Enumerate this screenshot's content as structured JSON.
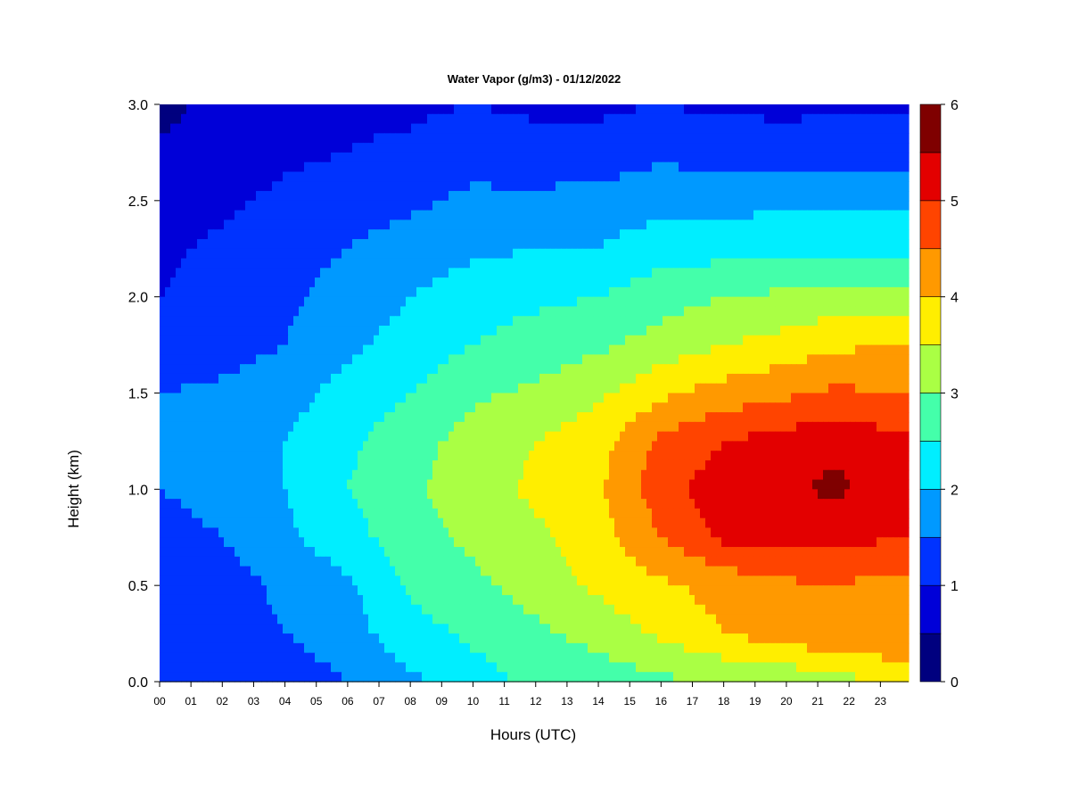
{
  "chart_data": {
    "type": "heatmap",
    "title": "Water Vapor (g/m3) - 01/12/2022",
    "xlabel": "Hours (UTC)",
    "ylabel": "Height (km)",
    "xlim": [
      0,
      23.9
    ],
    "ylim": [
      0.0,
      3.0
    ],
    "x_ticks": [
      "00",
      "01",
      "02",
      "03",
      "04",
      "05",
      "06",
      "07",
      "08",
      "09",
      "10",
      "11",
      "12",
      "13",
      "14",
      "15",
      "16",
      "17",
      "18",
      "19",
      "20",
      "21",
      "22",
      "23"
    ],
    "y_ticks": [
      "0.0",
      "0.5",
      "1.0",
      "1.5",
      "2.0",
      "2.5",
      "3.0"
    ],
    "colorbar": {
      "range": [
        0,
        6
      ],
      "ticks": [
        "0",
        "1",
        "2",
        "3",
        "4",
        "5",
        "6"
      ],
      "levels": [
        0,
        0.5,
        1,
        1.5,
        2,
        2.5,
        3,
        3.5,
        4,
        4.5,
        5,
        5.5,
        6
      ],
      "colors": [
        "#00007f",
        "#0000d8",
        "#0033ff",
        "#0099ff",
        "#00eeff",
        "#44ffaa",
        "#aaff44",
        "#ffee00",
        "#ff9900",
        "#ff4400",
        "#e30000",
        "#7f0000"
      ]
    },
    "hours": [
      0,
      2,
      4,
      6,
      8,
      10,
      12,
      14,
      16,
      18,
      20,
      21.5,
      23.5
    ],
    "heights_km": [
      0.0,
      0.25,
      0.5,
      0.75,
      1.0,
      1.25,
      1.5,
      1.75,
      2.0,
      2.25,
      2.5,
      2.75,
      3.0
    ],
    "values_gm3": [
      [
        1.1,
        1.2,
        1.2,
        1.5,
        1.9,
        2.3,
        2.6,
        2.7,
        2.9,
        3.0,
        3.1,
        3.3,
        3.6
      ],
      [
        1.2,
        1.3,
        1.5,
        1.8,
        2.3,
        2.6,
        2.9,
        3.2,
        3.6,
        4.0,
        4.3,
        4.4,
        4.5
      ],
      [
        1.2,
        1.3,
        1.6,
        1.9,
        2.6,
        2.9,
        3.2,
        3.6,
        3.9,
        4.2,
        4.4,
        4.5,
        4.3
      ],
      [
        1.3,
        1.5,
        1.9,
        2.3,
        2.8,
        3.1,
        3.4,
        3.8,
        4.5,
        5.1,
        5.2,
        5.2,
        5.0
      ],
      [
        1.5,
        1.7,
        2.0,
        2.5,
        2.9,
        3.3,
        3.6,
        3.9,
        4.8,
        5.3,
        5.4,
        5.6,
        5.3
      ],
      [
        1.6,
        1.7,
        2.0,
        2.4,
        2.8,
        3.2,
        3.5,
        3.8,
        4.6,
        5.0,
        5.2,
        5.4,
        5.1
      ],
      [
        1.5,
        1.6,
        1.8,
        2.2,
        2.5,
        2.9,
        3.1,
        3.4,
        3.9,
        4.2,
        4.4,
        4.6,
        4.5
      ],
      [
        1.1,
        1.3,
        1.5,
        1.9,
        2.2,
        2.5,
        2.7,
        2.9,
        3.2,
        3.5,
        3.7,
        3.9,
        4.0
      ],
      [
        1.0,
        1.2,
        1.4,
        1.7,
        2.0,
        2.3,
        2.4,
        2.5,
        2.8,
        3.0,
        3.1,
        3.2,
        3.2
      ],
      [
        0.9,
        1.1,
        1.3,
        1.5,
        1.7,
        1.9,
        2.0,
        2.0,
        2.3,
        2.3,
        2.4,
        2.4,
        2.4
      ],
      [
        0.7,
        0.9,
        1.1,
        1.3,
        1.4,
        1.6,
        1.6,
        1.7,
        1.8,
        1.8,
        1.9,
        1.9,
        1.9
      ],
      [
        0.6,
        0.8,
        0.9,
        1.0,
        1.1,
        1.3,
        1.2,
        1.2,
        1.4,
        1.3,
        1.2,
        1.3,
        1.3
      ],
      [
        0.3,
        0.7,
        0.8,
        0.9,
        0.9,
        1.0,
        0.9,
        0.9,
        1.0,
        0.9,
        0.9,
        0.9,
        0.9
      ]
    ]
  }
}
